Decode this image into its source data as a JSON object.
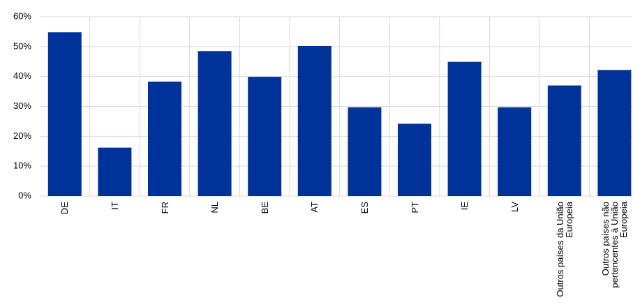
{
  "chart_data": {
    "type": "bar",
    "categories": [
      "DE",
      "IT",
      "FR",
      "NL",
      "BE",
      "AT",
      "ES",
      "PT",
      "IE",
      "LV",
      "Outros países da União Europeia",
      "Outros países não pertencentes à União Europeia"
    ],
    "values": [
      54.8,
      16.2,
      38.3,
      48.5,
      39.9,
      50.2,
      29.7,
      24.2,
      44.9,
      29.7,
      37.0,
      42.2
    ],
    "color": "#003399",
    "ylim": [
      0,
      60
    ],
    "yticks": [
      {
        "value": 0,
        "label": "0%"
      },
      {
        "value": 10,
        "label": "10%"
      },
      {
        "value": 20,
        "label": "20%"
      },
      {
        "value": 30,
        "label": "30%"
      },
      {
        "value": 40,
        "label": "40%"
      },
      {
        "value": 50,
        "label": "50%"
      },
      {
        "value": 60,
        "label": "60%"
      }
    ],
    "grid": true
  }
}
